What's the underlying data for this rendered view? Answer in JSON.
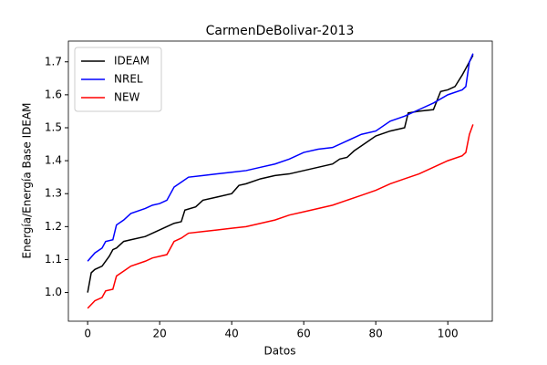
{
  "chart_data": {
    "type": "line",
    "title": "CarmenDeBolivar-2013",
    "x_label": "Datos",
    "y_label": "Energía/Energía Base IDEAM",
    "xlim": [
      -5.35,
      112.35
    ],
    "ylim": [
      0.913,
      1.763
    ],
    "xticks": [
      0,
      20,
      40,
      60,
      80,
      100
    ],
    "yticks": [
      {
        "value": 1,
        "label": "1.0"
      },
      1.1,
      1.2,
      1.3,
      1.4,
      1.5,
      1.6,
      1.7
    ],
    "grid": false,
    "legend": "upper left",
    "series": [
      {
        "name": "IDEAM",
        "color": "#000000",
        "x": [
          0,
          1,
          2,
          4,
          6,
          7,
          8,
          10,
          12,
          16,
          20,
          22,
          24,
          26,
          27,
          30,
          32,
          36,
          40,
          42,
          44,
          48,
          52,
          56,
          60,
          64,
          68,
          70,
          72,
          74,
          76,
          80,
          84,
          88,
          89,
          92,
          96,
          98,
          100,
          102,
          104,
          106,
          107
        ],
        "values": [
          1.0,
          1.06,
          1.07,
          1.08,
          1.11,
          1.13,
          1.135,
          1.155,
          1.16,
          1.17,
          1.19,
          1.2,
          1.21,
          1.215,
          1.25,
          1.26,
          1.28,
          1.29,
          1.3,
          1.325,
          1.33,
          1.345,
          1.355,
          1.36,
          1.37,
          1.38,
          1.39,
          1.405,
          1.41,
          1.43,
          1.445,
          1.475,
          1.49,
          1.5,
          1.545,
          1.55,
          1.555,
          1.61,
          1.615,
          1.625,
          1.66,
          1.7,
          1.72
        ]
      },
      {
        "name": "NREL",
        "color": "#0000ff",
        "x": [
          0,
          2,
          4,
          5,
          7,
          8,
          10,
          12,
          16,
          18,
          20,
          22,
          24,
          26,
          28,
          32,
          36,
          40,
          44,
          48,
          52,
          56,
          60,
          64,
          68,
          72,
          76,
          80,
          84,
          88,
          92,
          96,
          100,
          104,
          105,
          106,
          107
        ],
        "values": [
          1.095,
          1.12,
          1.135,
          1.155,
          1.16,
          1.205,
          1.22,
          1.24,
          1.255,
          1.265,
          1.27,
          1.28,
          1.32,
          1.335,
          1.35,
          1.355,
          1.36,
          1.365,
          1.37,
          1.38,
          1.39,
          1.405,
          1.425,
          1.435,
          1.44,
          1.46,
          1.48,
          1.49,
          1.52,
          1.535,
          1.555,
          1.575,
          1.6,
          1.615,
          1.625,
          1.7,
          1.725
        ]
      },
      {
        "name": "NEW",
        "color": "#ff0000",
        "x": [
          0,
          2,
          4,
          5,
          7,
          8,
          10,
          12,
          16,
          18,
          20,
          22,
          24,
          26,
          28,
          32,
          36,
          40,
          44,
          48,
          52,
          56,
          60,
          64,
          68,
          72,
          76,
          80,
          84,
          88,
          92,
          96,
          100,
          104,
          105,
          106,
          107
        ],
        "values": [
          0.952,
          0.975,
          0.985,
          1.005,
          1.01,
          1.05,
          1.065,
          1.08,
          1.095,
          1.105,
          1.11,
          1.115,
          1.155,
          1.165,
          1.18,
          1.185,
          1.19,
          1.195,
          1.2,
          1.21,
          1.22,
          1.235,
          1.245,
          1.255,
          1.265,
          1.28,
          1.295,
          1.31,
          1.33,
          1.345,
          1.36,
          1.38,
          1.4,
          1.415,
          1.425,
          1.48,
          1.51
        ]
      }
    ]
  }
}
